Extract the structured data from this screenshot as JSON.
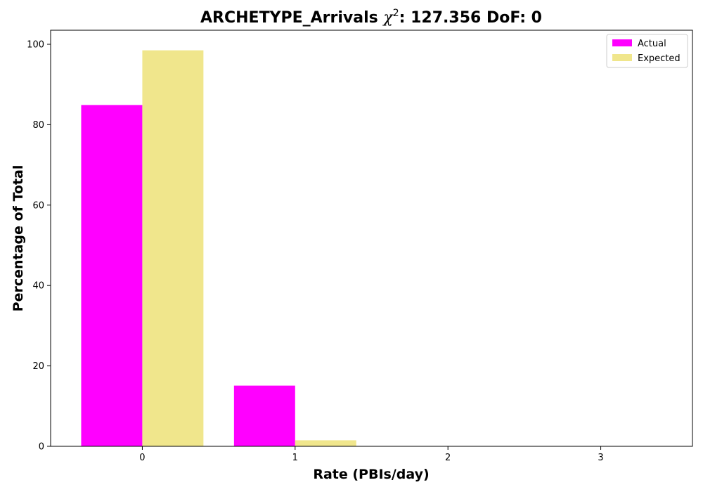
{
  "chart_data": {
    "type": "bar",
    "title_prefix": "ARCHETYPE_Arrivals ",
    "title_symbol": "χ",
    "title_sup": "2",
    "title_suffix": ": 127.356 DoF: 0",
    "xlabel": "Rate (PBIs/day)",
    "ylabel": "Percentage of Total",
    "categories": [
      "0",
      "1",
      "2",
      "3"
    ],
    "x": [
      0,
      1,
      2,
      3
    ],
    "xlim": [
      -0.6,
      3.6
    ],
    "ylim": [
      0,
      103.5
    ],
    "yticks": [
      0,
      20,
      40,
      60,
      80,
      100
    ],
    "grid": false,
    "legend_position": "top-right",
    "series": [
      {
        "name": "Actual",
        "color": "#ff00ff",
        "values": [
          84.9,
          15.1,
          0,
          0
        ]
      },
      {
        "name": "Expected",
        "color": "#f0e68c",
        "values": [
          98.5,
          1.5,
          0,
          0
        ]
      }
    ]
  }
}
